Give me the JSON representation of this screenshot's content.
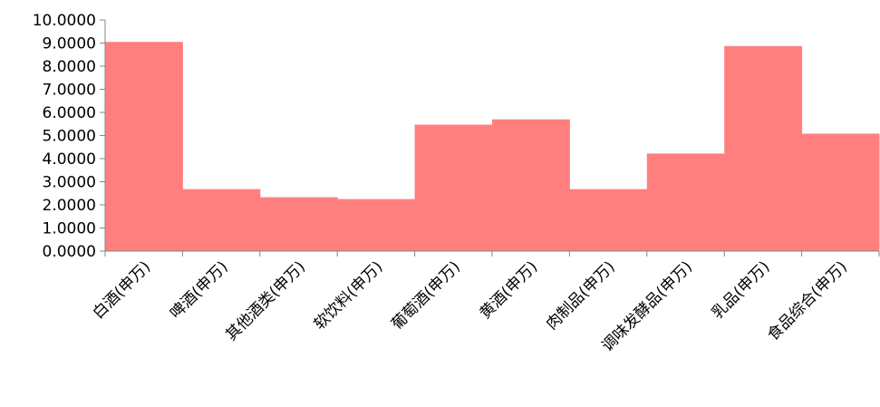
{
  "chart_data": {
    "type": "bar",
    "categories": [
      "白酒(申万)",
      "啤酒(申万)",
      "其他酒类(申万)",
      "软饮料(申万)",
      "葡萄酒(申万)",
      "黄酒(申万)",
      "肉制品(申万)",
      "调味发酵品(申万)",
      "乳品(申万)",
      "食品综合(申万)"
    ],
    "values": [
      9.05,
      2.68,
      2.33,
      2.25,
      5.47,
      5.7,
      2.68,
      4.22,
      8.87,
      5.08
    ],
    "ylim": [
      0,
      10
    ],
    "yticks": [
      "0.0000",
      "1.0000",
      "2.0000",
      "3.0000",
      "4.0000",
      "5.0000",
      "6.0000",
      "7.0000",
      "8.0000",
      "9.0000",
      "10.0000"
    ],
    "bar_color": "#ff7f7f",
    "axis_color": "#868686",
    "grid": false,
    "legend": "none"
  }
}
